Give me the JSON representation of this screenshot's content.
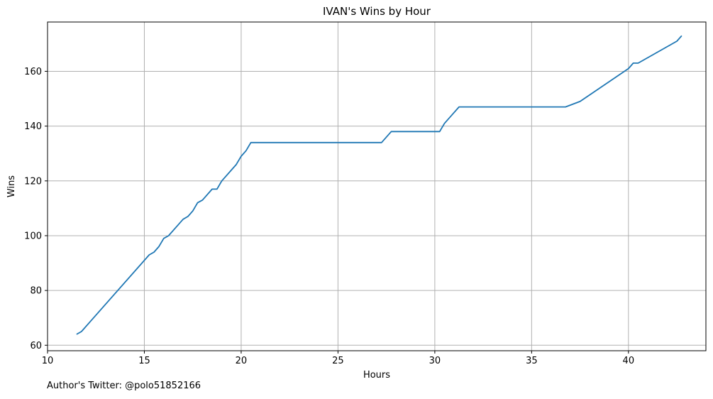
{
  "footer": "Author's Twitter: @polo51852166",
  "chart_data": {
    "type": "line",
    "title": "IVAN's Wins by Hour",
    "xlabel": "Hours",
    "ylabel": "Wins",
    "xlim": [
      10,
      44
    ],
    "ylim": [
      58,
      178
    ],
    "xticks": [
      10,
      15,
      20,
      25,
      30,
      35,
      40
    ],
    "yticks": [
      60,
      80,
      100,
      120,
      140,
      160
    ],
    "grid": true,
    "colors": {
      "line": "#1f77b4",
      "grid": "#b0b0b0"
    },
    "series": [
      {
        "x": [
          11.5,
          11.75,
          15.25,
          15.5,
          15.75,
          16.0,
          16.25,
          17.0,
          17.25,
          17.5,
          17.75,
          18.0,
          18.5,
          18.75,
          19.0,
          19.75,
          20.0,
          20.25,
          20.5,
          27.25,
          27.75,
          30.25,
          30.5,
          31.25,
          36.75,
          37.5,
          40.0,
          40.25,
          40.5,
          42.5,
          42.75
        ],
        "y": [
          64,
          65,
          93,
          94,
          96,
          99,
          100,
          106,
          107,
          109,
          112,
          113,
          117,
          117,
          120,
          126,
          129,
          131,
          134,
          134,
          138,
          138,
          141,
          147,
          147,
          149,
          161,
          163,
          163,
          171,
          173
        ]
      }
    ]
  }
}
